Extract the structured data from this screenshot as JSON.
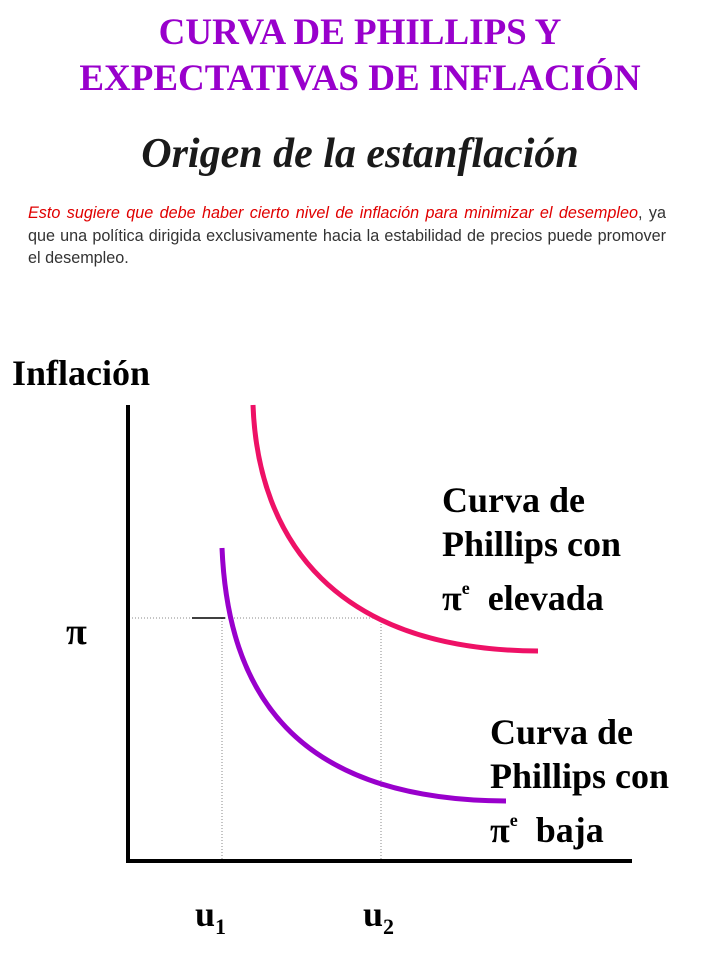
{
  "title_line1": "CURVA DE PHILLIPS Y",
  "title_line2": "EXPECTATIVAS DE INFLACIÓN",
  "subtitle": "Origen de la estanflación",
  "paragraph": {
    "red_part": "Esto sugiere que debe haber cierto nivel de inflación para minimizar el desempleo",
    "black_part": ", ya que una política dirigida exclusivamente hacia la estabilidad de precios puede promover el desempleo."
  },
  "diagram": {
    "y_axis_label": "Inflación",
    "pi_label": "π",
    "u1_main": "u",
    "u1_sub": "1",
    "u2_main": "u",
    "u2_sub": "2",
    "high_curve": {
      "line1": "Curva de",
      "line2": "Phillips con",
      "pi": "π",
      "sup": "e",
      "word": "elevada",
      "color": "#ee1166"
    },
    "low_curve": {
      "line1": "Curva de",
      "line2": "Phillips con",
      "pi": "π",
      "sup": "e",
      "word": "baja",
      "color": "#9900cc"
    }
  },
  "colors": {
    "title": "#9900cc",
    "red_text": "#e00000"
  }
}
